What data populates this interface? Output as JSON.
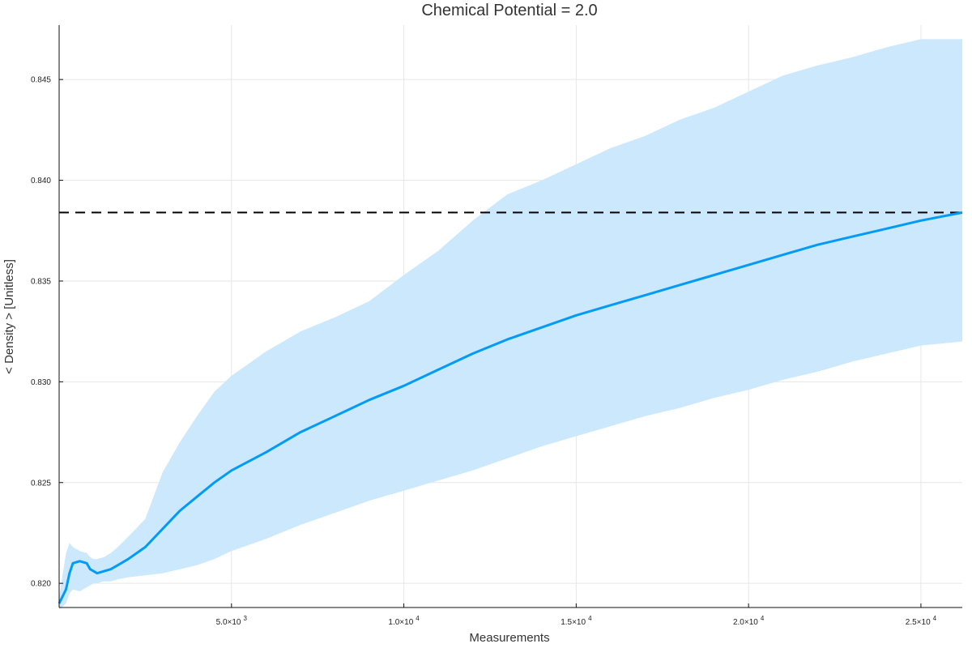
{
  "chart_data": {
    "type": "line",
    "title": "Chemical Potential = 2.0",
    "xlabel": "Measurements",
    "ylabel": "< Density > [Unitless]",
    "xlim": [
      0,
      26200
    ],
    "ylim": [
      0.8188,
      0.8477
    ],
    "grid": true,
    "legend": "none",
    "xticks": [
      {
        "value": 5000,
        "mantissa": "5.0×10",
        "exp": "3"
      },
      {
        "value": 10000,
        "mantissa": "1.0×10",
        "exp": "4"
      },
      {
        "value": 15000,
        "mantissa": "1.5×10",
        "exp": "4"
      },
      {
        "value": 20000,
        "mantissa": "2.0×10",
        "exp": "4"
      },
      {
        "value": 25000,
        "mantissa": "2.5×10",
        "exp": "4"
      }
    ],
    "yticks": [
      {
        "value": 0.82,
        "label": "0.820"
      },
      {
        "value": 0.825,
        "label": "0.825"
      },
      {
        "value": 0.83,
        "label": "0.830"
      },
      {
        "value": 0.835,
        "label": "0.835"
      },
      {
        "value": 0.84,
        "label": "0.840"
      },
      {
        "value": 0.845,
        "label": "0.845"
      }
    ],
    "reference_line": {
      "y": 0.8384,
      "style": "dashed",
      "color": "#000000"
    },
    "series": [
      {
        "color": "#009af9",
        "band_color": "#cbe8fc",
        "x": [
          0,
          200,
          300,
          400,
          600,
          800,
          900,
          1000,
          1100,
          1300,
          1500,
          1700,
          2000,
          2500,
          3000,
          3500,
          4000,
          4500,
          5000,
          6000,
          7000,
          8000,
          9000,
          10000,
          11000,
          12000,
          13000,
          14000,
          15000,
          16000,
          17000,
          18000,
          19000,
          20000,
          21000,
          22000,
          23000,
          24000,
          25000,
          26200
        ],
        "y": [
          0.819,
          0.8197,
          0.8205,
          0.821,
          0.8211,
          0.821,
          0.8207,
          0.8206,
          0.8205,
          0.8206,
          0.8207,
          0.8209,
          0.8212,
          0.8218,
          0.8227,
          0.8236,
          0.8243,
          0.825,
          0.8256,
          0.8265,
          0.8275,
          0.8283,
          0.8291,
          0.8298,
          0.8306,
          0.8314,
          0.8321,
          0.8327,
          0.8333,
          0.8338,
          0.8343,
          0.8348,
          0.8353,
          0.8358,
          0.8363,
          0.8368,
          0.8372,
          0.8376,
          0.838,
          0.8384
        ],
        "upper": [
          0.8193,
          0.8215,
          0.822,
          0.8218,
          0.8216,
          0.8215,
          0.8213,
          0.8212,
          0.8212,
          0.8213,
          0.8215,
          0.8218,
          0.8223,
          0.8232,
          0.8255,
          0.827,
          0.8283,
          0.8295,
          0.8303,
          0.8315,
          0.8325,
          0.8332,
          0.834,
          0.8353,
          0.8365,
          0.838,
          0.8393,
          0.84,
          0.8408,
          0.8416,
          0.8422,
          0.843,
          0.8436,
          0.8444,
          0.8452,
          0.8457,
          0.8461,
          0.8466,
          0.847,
          0.847
        ],
        "lower": [
          0.8187,
          0.819,
          0.8195,
          0.8197,
          0.8196,
          0.8198,
          0.8199,
          0.82,
          0.82,
          0.8201,
          0.8201,
          0.8202,
          0.8203,
          0.8204,
          0.8205,
          0.8207,
          0.8209,
          0.8212,
          0.8216,
          0.8222,
          0.8229,
          0.8235,
          0.8241,
          0.8246,
          0.8251,
          0.8256,
          0.8262,
          0.8268,
          0.8273,
          0.8278,
          0.8283,
          0.8287,
          0.8292,
          0.8296,
          0.8301,
          0.8305,
          0.831,
          0.8314,
          0.8318,
          0.832
        ]
      }
    ]
  }
}
